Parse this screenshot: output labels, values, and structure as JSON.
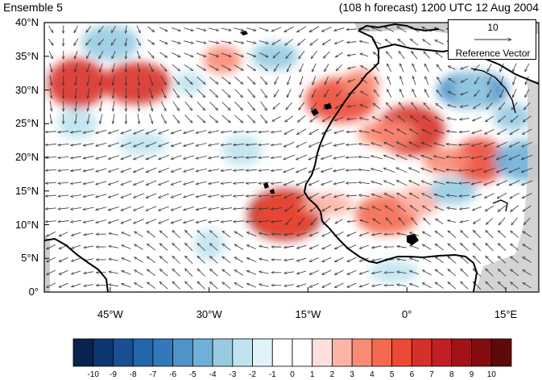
{
  "header": {
    "left_label": "Ensemble 5",
    "right_label": "(108 h forecast) 1200 UTC 12 Aug 2004"
  },
  "map": {
    "lat_range": [
      0,
      40
    ],
    "lon_range": [
      -55,
      20
    ],
    "lat_ticks": [
      {
        "value": 40,
        "label": "40°N"
      },
      {
        "value": 35,
        "label": "35°N"
      },
      {
        "value": 30,
        "label": "30°N"
      },
      {
        "value": 25,
        "label": "25°N"
      },
      {
        "value": 20,
        "label": "20°N"
      },
      {
        "value": 15,
        "label": "15°N"
      },
      {
        "value": 10,
        "label": "10°N"
      },
      {
        "value": 5,
        "label": "5°N"
      },
      {
        "value": 0,
        "label": "0°"
      }
    ],
    "lon_ticks": [
      {
        "value": -45,
        "label": "45°W"
      },
      {
        "value": -30,
        "label": "30°W"
      },
      {
        "value": -15,
        "label": "15°W"
      },
      {
        "value": 0,
        "label": "0°"
      },
      {
        "value": 15,
        "label": "15°E"
      }
    ],
    "land_color": "#ffffff",
    "missing_color": "#cccccc",
    "anomaly_features": [
      {
        "lon": -18.5,
        "lat": 11.5,
        "value": 8
      },
      {
        "lon": -18.5,
        "lat": 11.5,
        "value": 5
      },
      {
        "lon": -12,
        "lat": 13,
        "value": 2
      },
      {
        "lon": -50,
        "lat": 31,
        "value": 6
      },
      {
        "lon": -41,
        "lat": 31,
        "value": 6
      },
      {
        "lon": -10,
        "lat": 28.5,
        "value": 5
      },
      {
        "lon": -7,
        "lat": 31,
        "value": 3
      },
      {
        "lon": 0.5,
        "lat": 24,
        "value": 6
      },
      {
        "lon": -3,
        "lat": 23.5,
        "value": 3
      },
      {
        "lon": 11,
        "lat": 19.5,
        "value": 5
      },
      {
        "lon": 6,
        "lat": 19.5,
        "value": 3
      },
      {
        "lon": -3,
        "lat": 11.5,
        "value": 4
      },
      {
        "lon": -28,
        "lat": 34.5,
        "value": 3
      },
      {
        "lon": 2,
        "lat": 13.5,
        "value": 2
      },
      {
        "lon": 10,
        "lat": 30,
        "value": -5
      },
      {
        "lon": 10,
        "lat": 30,
        "value": -3
      },
      {
        "lon": -20,
        "lat": 35,
        "value": -3
      },
      {
        "lon": -45,
        "lat": 37,
        "value": -3
      },
      {
        "lon": -33,
        "lat": 31,
        "value": -2
      },
      {
        "lon": -25,
        "lat": 21,
        "value": -2
      },
      {
        "lon": -40,
        "lat": 22,
        "value": -2
      },
      {
        "lon": -30,
        "lat": 7,
        "value": -2
      },
      {
        "lon": 7,
        "lat": 15,
        "value": -3
      },
      {
        "lon": 18,
        "lat": 19.5,
        "value": -4
      },
      {
        "lon": 16,
        "lat": 26,
        "value": -3
      },
      {
        "lon": -50,
        "lat": 25,
        "value": -2
      },
      {
        "lon": -2,
        "lat": 3,
        "value": -2
      }
    ],
    "wind_field_note": "",
    "reference_vector": {
      "magnitude_label": "10",
      "label": "Reference Vector"
    }
  },
  "colorbar": {
    "levels": [
      "-10",
      "-9",
      "-8",
      "-7",
      "-6",
      "-5",
      "-4",
      "-3",
      "-2",
      "-1",
      "0",
      "1",
      "2",
      "3",
      "4",
      "5",
      "6",
      "7",
      "8",
      "9",
      "10"
    ],
    "colors": [
      "#08234d",
      "#0b3670",
      "#1a4f94",
      "#2266ad",
      "#3478bc",
      "#4e93c9",
      "#6fb0d8",
      "#96cbe1",
      "#bfe3ef",
      "#e0f3f8",
      "#ffffff",
      "#ffffff",
      "#fde0dd",
      "#fbb4a5",
      "#f98b74",
      "#f4694f",
      "#ec4a36",
      "#d7302a",
      "#c21f24",
      "#a41219",
      "#830d10",
      "#5e0a0a"
    ]
  }
}
